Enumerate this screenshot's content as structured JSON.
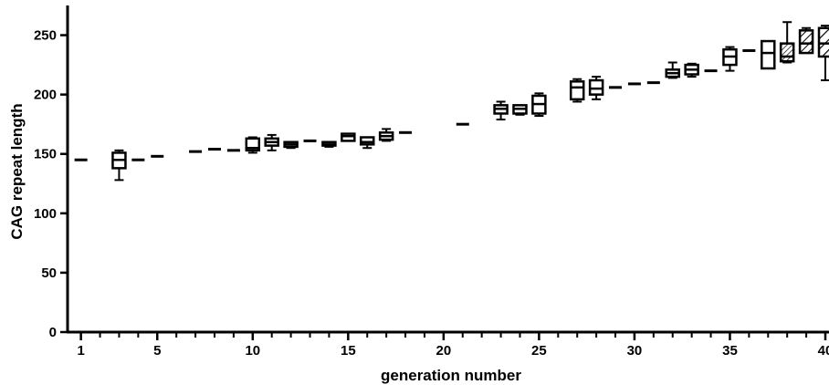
{
  "chart_data": {
    "type": "box",
    "title": "",
    "xlabel": "generation number",
    "ylabel": "CAG repeat length",
    "xlim": [
      0.3,
      40
    ],
    "ylim": [
      0,
      275
    ],
    "xticks": [
      1,
      5,
      10,
      15,
      20,
      25,
      30,
      35,
      40
    ],
    "yticks": [
      0,
      50,
      100,
      150,
      200,
      250
    ],
    "grid": false,
    "legend": "none",
    "colors": {
      "stroke": "#000000",
      "background": "#ffffff"
    },
    "boxes": [
      {
        "x": 1,
        "min": 145,
        "q1": 145,
        "median": 145,
        "q3": 145,
        "max": 145
      },
      {
        "x": 3,
        "min": 128,
        "q1": 138,
        "median": 145,
        "q3": 151,
        "max": 153
      },
      {
        "x": 4,
        "min": 143,
        "q1": 144,
        "median": 145,
        "q3": 146,
        "max": 147
      },
      {
        "x": 5,
        "min": 146,
        "q1": 147,
        "median": 148,
        "q3": 149,
        "max": 150
      },
      {
        "x": 7,
        "min": 150,
        "q1": 151,
        "median": 152,
        "q3": 153,
        "max": 154
      },
      {
        "x": 8,
        "min": 154,
        "q1": 154,
        "median": 154,
        "q3": 154,
        "max": 155
      },
      {
        "x": 9,
        "min": 152,
        "q1": 153,
        "median": 153,
        "q3": 154,
        "max": 154
      },
      {
        "x": 10,
        "min": 151,
        "q1": 153,
        "median": 155,
        "q3": 163,
        "max": 164
      },
      {
        "x": 11,
        "min": 153,
        "q1": 157,
        "median": 160,
        "q3": 163,
        "max": 166
      },
      {
        "x": 12,
        "min": 155,
        "q1": 156,
        "median": 158,
        "q3": 160,
        "max": 160
      },
      {
        "x": 13,
        "min": 159,
        "q1": 160,
        "median": 161,
        "q3": 162,
        "max": 162
      },
      {
        "x": 14,
        "min": 156,
        "q1": 157,
        "median": 158,
        "q3": 160,
        "max": 160
      },
      {
        "x": 15,
        "min": 161,
        "q1": 161,
        "median": 165,
        "q3": 167,
        "max": 167
      },
      {
        "x": 16,
        "min": 155,
        "q1": 158,
        "median": 160,
        "q3": 164,
        "max": 164
      },
      {
        "x": 17,
        "min": 161,
        "q1": 162,
        "median": 165,
        "q3": 168,
        "max": 171
      },
      {
        "x": 18,
        "min": 166,
        "q1": 167,
        "median": 168,
        "q3": 169,
        "max": 170
      },
      {
        "x": 21,
        "min": 173,
        "q1": 174,
        "median": 175,
        "q3": 176,
        "max": 176
      },
      {
        "x": 23,
        "min": 179,
        "q1": 184,
        "median": 188,
        "q3": 191,
        "max": 194
      },
      {
        "x": 24,
        "min": 183,
        "q1": 184,
        "median": 188,
        "q3": 191,
        "max": 191
      },
      {
        "x": 25,
        "min": 182,
        "q1": 184,
        "median": 192,
        "q3": 199,
        "max": 201
      },
      {
        "x": 27,
        "min": 194,
        "q1": 196,
        "median": 206,
        "q3": 211,
        "max": 213
      },
      {
        "x": 28,
        "min": 196,
        "q1": 200,
        "median": 205,
        "q3": 212,
        "max": 215
      },
      {
        "x": 29,
        "min": 206,
        "q1": 206,
        "median": 206,
        "q3": 206,
        "max": 207
      },
      {
        "x": 30,
        "min": 207,
        "q1": 208,
        "median": 209,
        "q3": 210,
        "max": 211
      },
      {
        "x": 31,
        "min": 208,
        "q1": 209,
        "median": 210,
        "q3": 211,
        "max": 212
      },
      {
        "x": 32,
        "min": 214,
        "q1": 215,
        "median": 218,
        "q3": 221,
        "max": 227
      },
      {
        "x": 33,
        "min": 215,
        "q1": 217,
        "median": 221,
        "q3": 225,
        "max": 226
      },
      {
        "x": 34,
        "min": 220,
        "q1": 220,
        "median": 220,
        "q3": 220,
        "max": 221
      },
      {
        "x": 35,
        "min": 220,
        "q1": 225,
        "median": 232,
        "q3": 238,
        "max": 240
      },
      {
        "x": 36,
        "min": 232,
        "q1": 236,
        "median": 237,
        "q3": 238,
        "max": 240
      },
      {
        "x": 37,
        "min": 222,
        "q1": 222,
        "median": 235,
        "q3": 245,
        "max": 245
      },
      {
        "x": 38,
        "min": 227,
        "q1": 228,
        "median": 232,
        "q3": 243,
        "max": 261,
        "hatch": "dense"
      },
      {
        "x": 39,
        "min": 235,
        "q1": 235,
        "median": 243,
        "q3": 254,
        "max": 256,
        "hatch": "medium"
      },
      {
        "x": 40,
        "min": 212,
        "q1": 232,
        "median": 243,
        "q3": 256,
        "max": 258,
        "hatch": "wide"
      }
    ]
  }
}
